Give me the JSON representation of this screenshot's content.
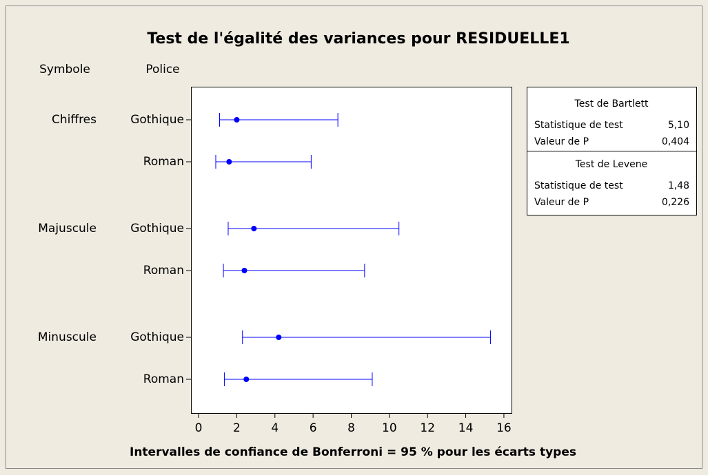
{
  "chart_data": {
    "type": "interval",
    "title": "Test de l'égalité des variances pour RESIDUELLE1",
    "xlabel": "Intervalles de confiance de Bonferroni = 95 % pour les écarts types",
    "group_header": "Symbole",
    "category_header": "Police",
    "color": "#0000ff",
    "xlim": [
      -0.4,
      16.4
    ],
    "xticks": [
      0,
      2,
      4,
      6,
      8,
      10,
      12,
      14,
      16
    ],
    "groups": [
      {
        "label": "Chiffres",
        "categories": [
          "Gothique",
          "Roman"
        ],
        "values": [
          2.0,
          1.6
        ],
        "lower": [
          1.1,
          0.9
        ],
        "upper": [
          7.3,
          5.9
        ]
      },
      {
        "label": "Majuscule",
        "categories": [
          "Gothique",
          "Roman"
        ],
        "values": [
          2.9,
          2.4
        ],
        "lower": [
          1.55,
          1.3
        ],
        "upper": [
          10.5,
          8.7
        ]
      },
      {
        "label": "Minuscule",
        "categories": [
          "Gothique",
          "Roman"
        ],
        "values": [
          4.2,
          2.5
        ],
        "lower": [
          2.3,
          1.35
        ],
        "upper": [
          15.3,
          9.1
        ]
      }
    ],
    "tests": [
      {
        "title": "Test de Bartlett",
        "rows": [
          [
            "Statistique de test",
            "5,10"
          ],
          [
            "Valeur de P",
            "0,404"
          ]
        ]
      },
      {
        "title": "Test de Levene",
        "rows": [
          [
            "Statistique de test",
            "1,48"
          ],
          [
            "Valeur de P",
            "0,226"
          ]
        ]
      }
    ]
  }
}
